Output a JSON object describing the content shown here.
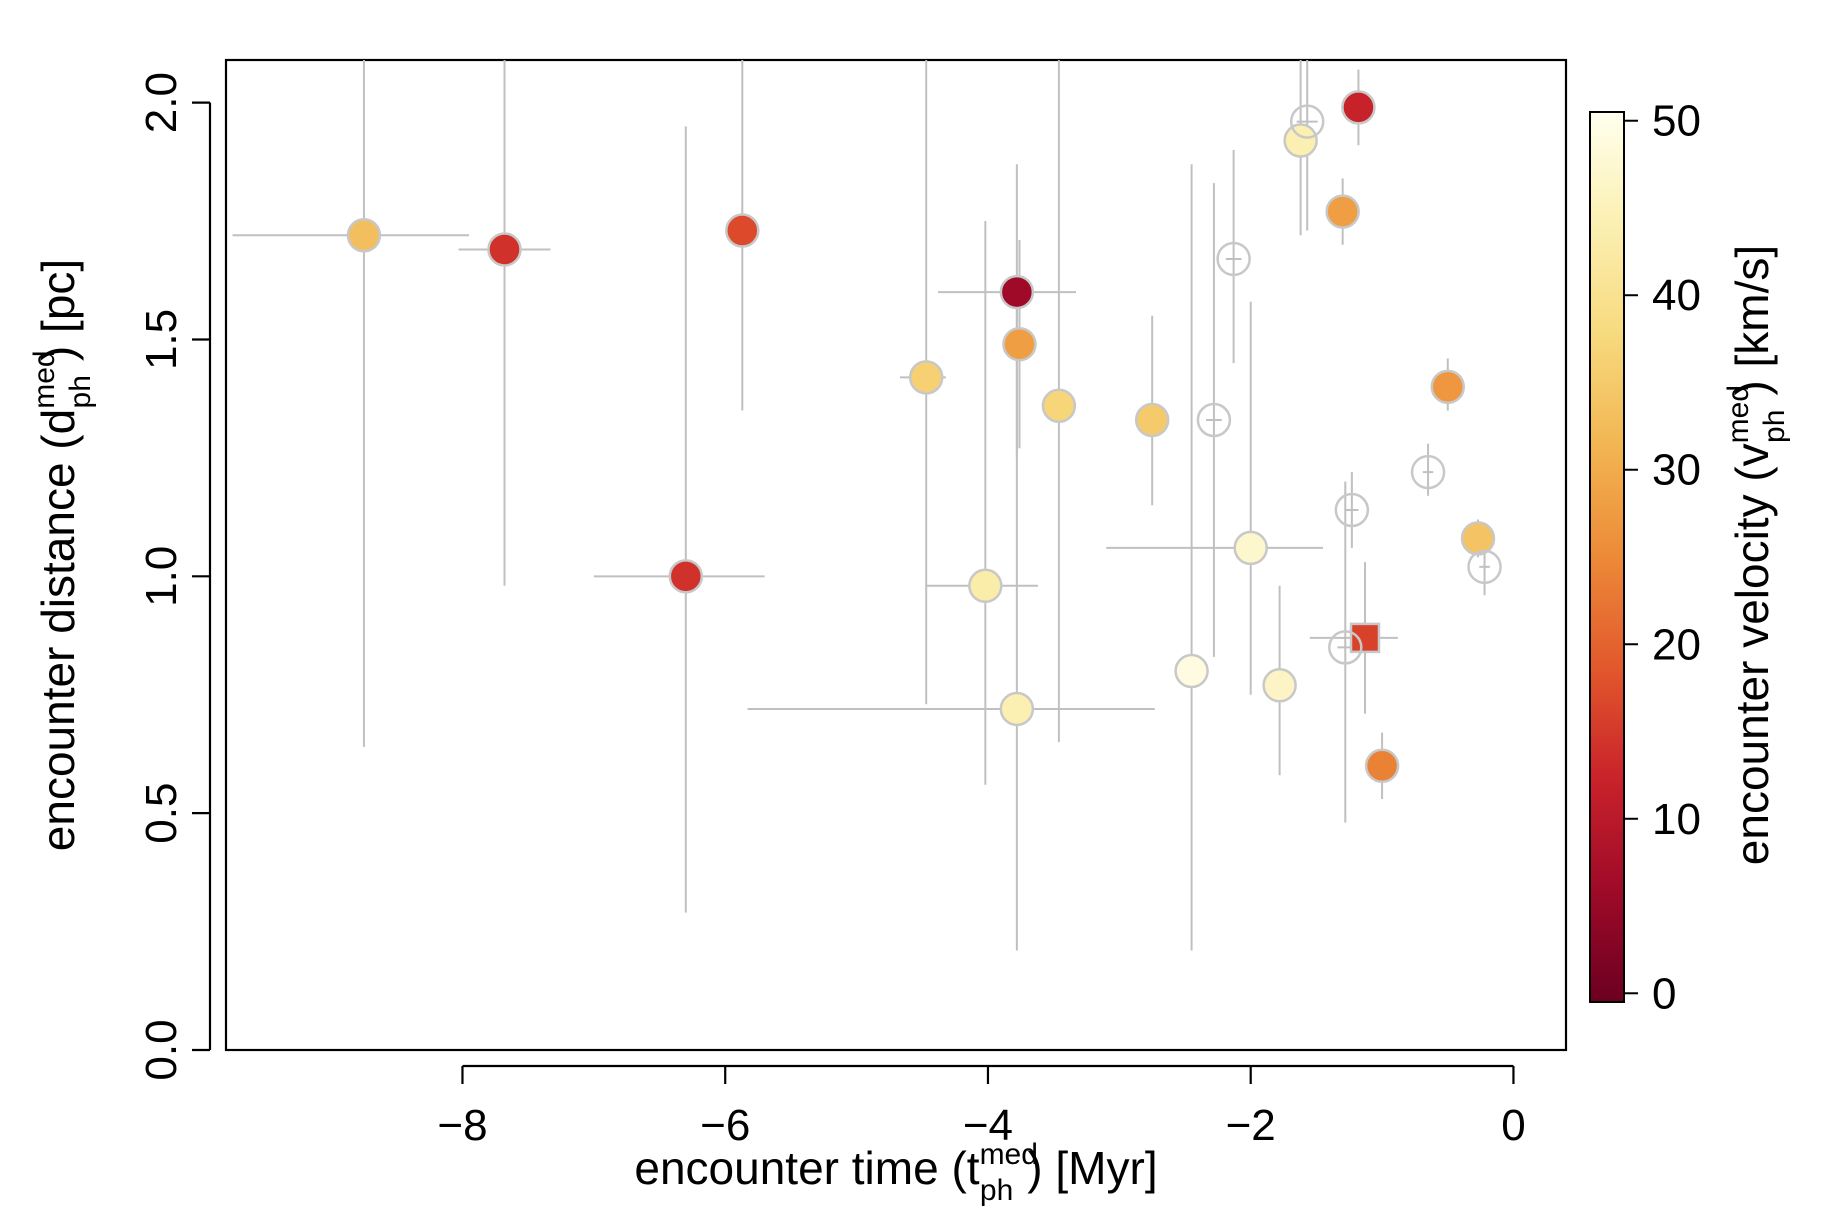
{
  "chart_data": {
    "type": "scatter",
    "xlabel": {
      "main": "encounter time (t",
      "sub": "ph",
      "sup": "med",
      "tail": ") [Myr]"
    },
    "ylabel": {
      "main": "encounter distance (d",
      "sub": "ph",
      "sup": "med",
      "tail": ") [pc]"
    },
    "colorbar_label": {
      "main": "encounter velocity (v",
      "sub": "ph",
      "sup": "med",
      "tail": ") [km/s]"
    },
    "xlim": [
      -9.8,
      0.4
    ],
    "ylim": [
      0.0,
      2.09
    ],
    "x_ticks": [
      -8,
      -6,
      -4,
      -2,
      0
    ],
    "x_tick_labels": [
      "−8",
      "−6",
      "−4",
      "−2",
      "0"
    ],
    "y_ticks": [
      0.0,
      0.5,
      1.0,
      1.5,
      2.0
    ],
    "y_tick_labels": [
      "0.0",
      "0.5",
      "1.0",
      "1.5",
      "2.0"
    ],
    "colorbar": {
      "range": [
        -0.5,
        50.5
      ],
      "ticks": [
        0,
        10,
        20,
        30,
        40,
        50
      ],
      "tick_labels": [
        "0",
        "10",
        "20",
        "30",
        "40",
        "50"
      ],
      "stops": [
        "#6b0020",
        "#9e0a28",
        "#c9222a",
        "#e2582c",
        "#ec8a38",
        "#f2b552",
        "#f7da7e",
        "#fbf0b2",
        "#ffffee"
      ]
    },
    "error_bar_color": "#c0c0c0",
    "no_velocity_color": "#c8c8c8",
    "points": [
      {
        "x": -8.75,
        "y": 1.72,
        "v": 33,
        "xerr": [
          1.0,
          0.8
        ],
        "yerr": [
          1.08,
          0.4
        ],
        "marker": "circle"
      },
      {
        "x": -7.68,
        "y": 1.69,
        "v": 14,
        "xerr": [
          0.35,
          0.35
        ],
        "yerr": [
          0.71,
          0.4
        ],
        "marker": "circle"
      },
      {
        "x": -5.87,
        "y": 1.73,
        "v": 17,
        "xerr": [
          0.12,
          0.12
        ],
        "yerr": [
          0.38,
          0.4
        ],
        "marker": "circle"
      },
      {
        "x": -6.3,
        "y": 1.0,
        "v": 14,
        "xerr": [
          0.7,
          0.6
        ],
        "yerr": [
          0.71,
          0.95
        ],
        "marker": "circle"
      },
      {
        "x": -4.47,
        "y": 1.42,
        "v": 36,
        "xerr": [
          0.2,
          0.15
        ],
        "yerr": [
          0.69,
          0.7
        ],
        "marker": "circle"
      },
      {
        "x": -3.78,
        "y": 1.6,
        "v": 6,
        "xerr": [
          0.6,
          0.45
        ],
        "yerr": [
          0.35,
          0.27
        ],
        "marker": "circle"
      },
      {
        "x": -3.76,
        "y": 1.49,
        "v": 28,
        "xerr": [
          0.1,
          0.1
        ],
        "yerr": [
          0.22,
          0.22
        ],
        "marker": "circle"
      },
      {
        "x": -3.46,
        "y": 1.36,
        "v": 37,
        "xerr": [
          0.12,
          0.12
        ],
        "yerr": [
          0.71,
          0.75
        ],
        "marker": "circle"
      },
      {
        "x": -2.75,
        "y": 1.33,
        "v": 35,
        "xerr": [
          0.08,
          0.08
        ],
        "yerr": [
          0.18,
          0.22
        ],
        "marker": "circle"
      },
      {
        "x": -4.02,
        "y": 0.98,
        "v": 43,
        "xerr": [
          0.45,
          0.4
        ],
        "yerr": [
          0.42,
          0.77
        ],
        "marker": "circle"
      },
      {
        "x": -3.78,
        "y": 0.72,
        "v": 44,
        "xerr": [
          2.05,
          1.05
        ],
        "yerr": [
          0.51,
          0.9
        ],
        "marker": "circle"
      },
      {
        "x": -2.45,
        "y": 0.8,
        "v": 49,
        "xerr": [
          0.1,
          0.1
        ],
        "yerr": [
          0.59,
          1.07
        ],
        "marker": "circle"
      },
      {
        "x": -2.0,
        "y": 1.06,
        "v": 47,
        "xerr": [
          1.1,
          0.55
        ],
        "yerr": [
          0.31,
          0.52
        ],
        "marker": "circle"
      },
      {
        "x": -1.78,
        "y": 0.77,
        "v": 46,
        "xerr": [
          0.07,
          0.07
        ],
        "yerr": [
          0.19,
          0.21
        ],
        "marker": "circle"
      },
      {
        "x": -1.62,
        "y": 1.92,
        "v": 44,
        "xerr": [
          0.08,
          0.08
        ],
        "yerr": [
          0.2,
          0.2
        ],
        "marker": "circle"
      },
      {
        "x": -1.3,
        "y": 1.77,
        "v": 28,
        "xerr": [
          0.08,
          0.08
        ],
        "yerr": [
          0.07,
          0.07
        ],
        "marker": "circle"
      },
      {
        "x": -1.18,
        "y": 1.99,
        "v": 12,
        "xerr": [
          0.06,
          0.06
        ],
        "yerr": [
          0.08,
          0.08
        ],
        "marker": "circle"
      },
      {
        "x": -0.5,
        "y": 1.4,
        "v": 27,
        "xerr": [
          0.05,
          0.05
        ],
        "yerr": [
          0.05,
          0.06
        ],
        "marker": "circle"
      },
      {
        "x": -0.27,
        "y": 1.08,
        "v": 34,
        "xerr": [
          0.05,
          0.05
        ],
        "yerr": [
          0.04,
          0.04
        ],
        "marker": "circle"
      },
      {
        "x": -1.0,
        "y": 0.6,
        "v": 24,
        "xerr": [
          0.06,
          0.06
        ],
        "yerr": [
          0.07,
          0.07
        ],
        "marker": "circle"
      },
      {
        "x": -1.13,
        "y": 0.87,
        "v": 16,
        "xerr": [
          0.42,
          0.25
        ],
        "yerr": [
          0.16,
          0.16
        ],
        "marker": "square"
      },
      {
        "x": -1.57,
        "y": 1.96,
        "v": null,
        "xerr": [
          0.08,
          0.08
        ],
        "yerr": [
          0.23,
          0.15
        ],
        "marker": "circle"
      },
      {
        "x": -2.13,
        "y": 1.67,
        "v": null,
        "xerr": [
          0.06,
          0.06
        ],
        "yerr": [
          0.22,
          0.23
        ],
        "marker": "circle"
      },
      {
        "x": -2.28,
        "y": 1.33,
        "v": null,
        "xerr": [
          0.06,
          0.06
        ],
        "yerr": [
          0.5,
          0.5
        ],
        "marker": "circle"
      },
      {
        "x": -1.23,
        "y": 1.14,
        "v": null,
        "xerr": [
          0.05,
          0.05
        ],
        "yerr": [
          0.08,
          0.08
        ],
        "marker": "circle"
      },
      {
        "x": -1.28,
        "y": 0.85,
        "v": null,
        "xerr": [
          0.06,
          0.06
        ],
        "yerr": [
          0.37,
          0.35
        ],
        "marker": "circle"
      },
      {
        "x": -0.65,
        "y": 1.22,
        "v": null,
        "xerr": [
          0.04,
          0.04
        ],
        "yerr": [
          0.05,
          0.06
        ],
        "marker": "circle"
      },
      {
        "x": -0.22,
        "y": 1.02,
        "v": null,
        "xerr": [
          0.04,
          0.04
        ],
        "yerr": [
          0.06,
          0.06
        ],
        "marker": "circle"
      }
    ]
  }
}
